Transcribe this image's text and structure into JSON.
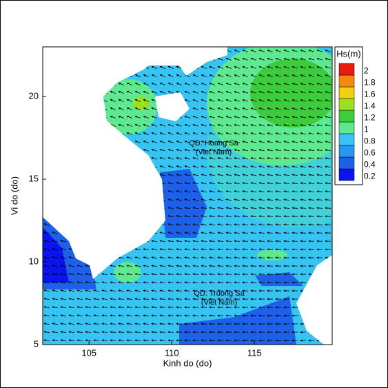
{
  "chart_data": {
    "type": "contour",
    "xlabel": "Kinh do (do)",
    "ylabel": "Vi do (do)",
    "xlim": [
      102.2,
      119.7
    ],
    "ylim": [
      5,
      23
    ],
    "xticks": [
      105,
      110,
      115
    ],
    "yticks": [
      5,
      10,
      15,
      20
    ],
    "annotations": [
      "QD. Hoang Sa",
      "(Viet Nam)",
      "QD. Truong Sa",
      "(Viet Nam)"
    ],
    "colorbar": {
      "label": "Hs(m)",
      "ticks": [
        0.2,
        0.4,
        0.6,
        0.8,
        1,
        1.2,
        1.4,
        1.6,
        1.8,
        2
      ],
      "colors": [
        "#0a14f0",
        "#1e60e8",
        "#2a96ee",
        "#38c4f2",
        "#5ee890",
        "#3ccc3c",
        "#9ee020",
        "#f0d010",
        "#f48a10",
        "#e81c0c"
      ]
    }
  }
}
